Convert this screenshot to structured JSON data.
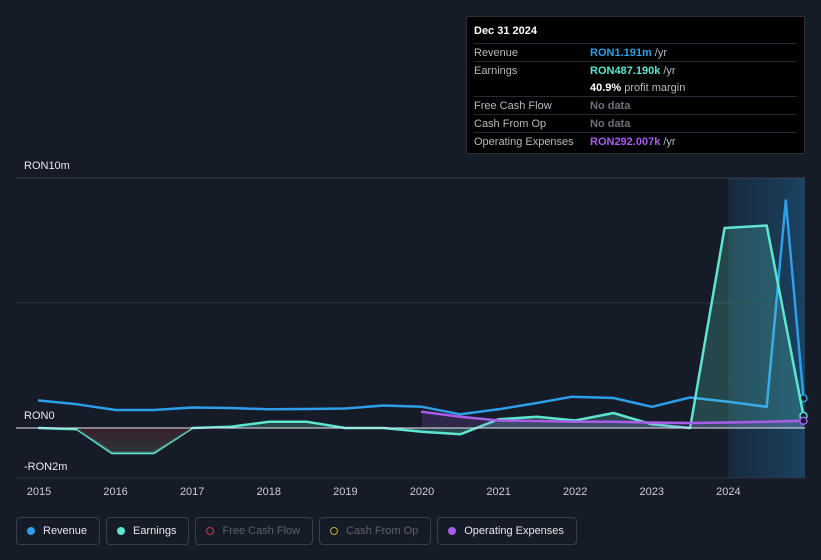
{
  "tooltip": {
    "date": "Dec 31 2024",
    "rows": [
      {
        "label": "Revenue",
        "value": "RON1.191m",
        "unit": "/yr",
        "color": "#2f9ee9"
      },
      {
        "label": "Earnings",
        "value": "RON487.190k",
        "unit": "/yr",
        "color": "#5ee5cf"
      },
      {
        "label": "",
        "value": "40.9%",
        "unit": "profit margin",
        "color": "#ffffff"
      },
      {
        "label": "Free Cash Flow",
        "value": "No data",
        "unit": "",
        "color": "#6b717b"
      },
      {
        "label": "Cash From Op",
        "value": "No data",
        "unit": "",
        "color": "#6b717b"
      },
      {
        "label": "Operating Expenses",
        "value": "RON292.007k",
        "unit": "/yr",
        "color": "#a95ce8"
      }
    ]
  },
  "legend": [
    {
      "label": "Revenue",
      "color": "#2f9ee9",
      "active": true
    },
    {
      "label": "Earnings",
      "color": "#5ee5cf",
      "active": true
    },
    {
      "label": "Free Cash Flow",
      "color": "#c0395b",
      "active": false
    },
    {
      "label": "Cash From Op",
      "color": "#c7a43a",
      "active": false
    },
    {
      "label": "Operating Expenses",
      "color": "#a95ce8",
      "active": true
    }
  ],
  "chart_data": {
    "type": "line",
    "y_labels": {
      "top": "RON10m",
      "zero": "RON0",
      "bottom": "-RON2m"
    },
    "ylim": [
      -2,
      10
    ],
    "xlim": [
      2014.7,
      2025.0
    ],
    "x_ticks": [
      "2015",
      "2016",
      "2017",
      "2018",
      "2019",
      "2020",
      "2021",
      "2022",
      "2023",
      "2024"
    ],
    "highlight_from": 2024.0,
    "series": [
      {
        "name": "Revenue",
        "color": "#2f9ee9",
        "fill": false,
        "x": [
          2015.0,
          2015.5,
          2016.0,
          2016.5,
          2017.0,
          2017.5,
          2018.0,
          2018.5,
          2019.0,
          2019.5,
          2020.0,
          2020.5,
          2021.0,
          2021.5,
          2021.95,
          2022.5,
          2023.0,
          2023.5,
          2024.0,
          2024.5,
          2024.75,
          2024.98
        ],
        "y": [
          1.1,
          0.95,
          0.72,
          0.72,
          0.82,
          0.8,
          0.75,
          0.76,
          0.78,
          0.9,
          0.85,
          0.55,
          0.75,
          1.0,
          1.25,
          1.2,
          0.85,
          1.22,
          1.05,
          0.85,
          9.1,
          1.191
        ]
      },
      {
        "name": "Earnings",
        "color": "#5ee5cf",
        "fill": true,
        "x": [
          2015.0,
          2015.5,
          2015.95,
          2016.5,
          2017.0,
          2017.5,
          2018.0,
          2018.5,
          2019.0,
          2019.5,
          2020.0,
          2020.5,
          2021.0,
          2021.5,
          2022.0,
          2022.5,
          2023.0,
          2023.5,
          2023.95,
          2024.5,
          2024.98
        ],
        "y": [
          0.0,
          -0.05,
          -1.0,
          -1.0,
          0.0,
          0.05,
          0.25,
          0.25,
          0.0,
          0.0,
          -0.15,
          -0.25,
          0.35,
          0.45,
          0.3,
          0.6,
          0.15,
          0.0,
          8.0,
          8.1,
          0.487
        ]
      },
      {
        "name": "Operating Expenses",
        "color": "#a95ce8",
        "fill": true,
        "x": [
          2020.0,
          2020.5,
          2021.0,
          2021.5,
          2022.0,
          2022.5,
          2023.0,
          2023.5,
          2024.0,
          2024.5,
          2024.98
        ],
        "y": [
          0.65,
          0.45,
          0.3,
          0.28,
          0.25,
          0.25,
          0.22,
          0.2,
          0.22,
          0.25,
          0.292
        ]
      }
    ]
  }
}
